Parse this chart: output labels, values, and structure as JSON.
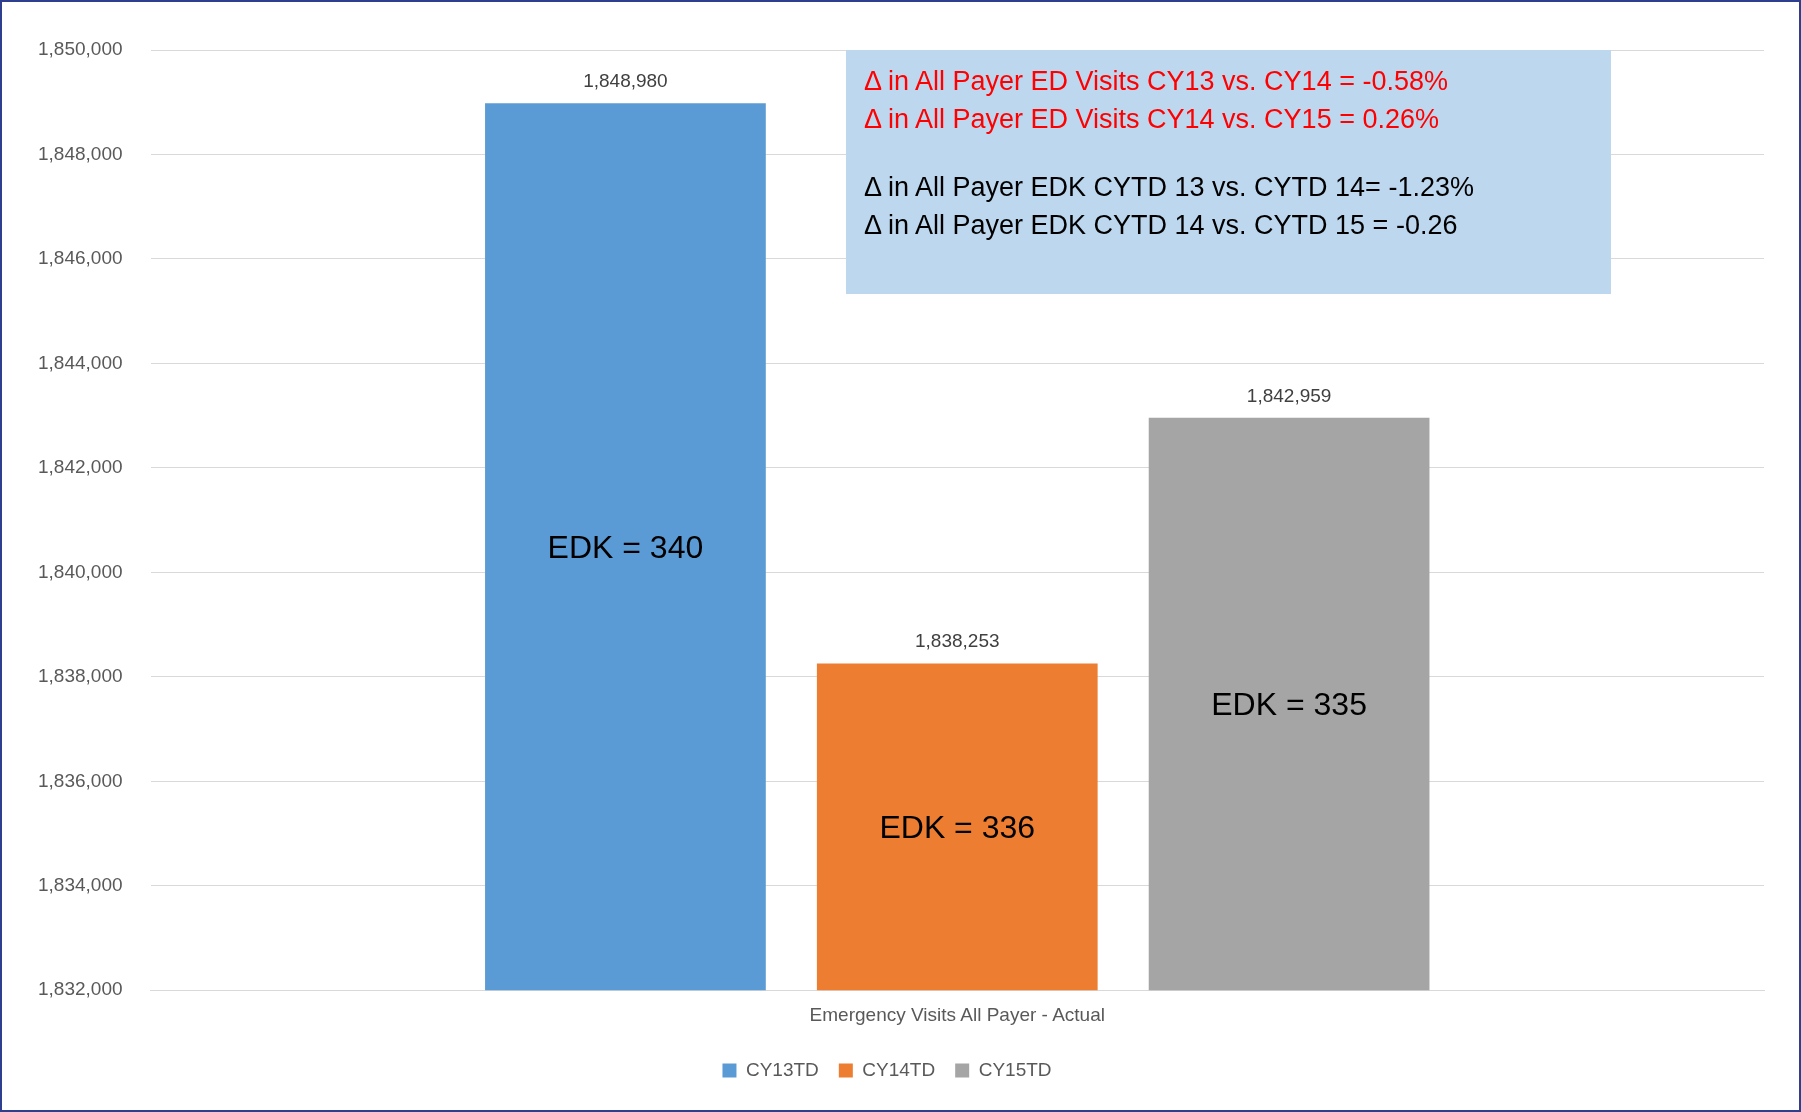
{
  "chart_data": {
    "type": "bar",
    "categories": [
      "Emergency Visits All Payer - Actual"
    ],
    "series": [
      {
        "name": "CY13TD",
        "color": "#5b9bd5",
        "values": [
          1848980
        ],
        "value_labels": [
          "1,848,980"
        ]
      },
      {
        "name": "CY14TD",
        "color": "#ed7d31",
        "values": [
          1838253
        ],
        "value_labels": [
          "1,838,253"
        ]
      },
      {
        "name": "CY15TD",
        "color": "#a5a5a5",
        "values": [
          1842959
        ],
        "value_labels": [
          "1,842,959"
        ]
      }
    ],
    "ylim": [
      1832000,
      1850000
    ],
    "yticks": [
      {
        "value": 1832000,
        "label": "1,832,000"
      },
      {
        "value": 1834000,
        "label": "1,834,000"
      },
      {
        "value": 1836000,
        "label": "1,836,000"
      },
      {
        "value": 1838000,
        "label": "1,838,000"
      },
      {
        "value": 1840000,
        "label": "1,840,000"
      },
      {
        "value": 1842000,
        "label": "1,842,000"
      },
      {
        "value": 1844000,
        "label": "1,844,000"
      },
      {
        "value": 1846000,
        "label": "1,846,000"
      },
      {
        "value": 1848000,
        "label": "1,848,000"
      },
      {
        "value": 1850000,
        "label": "1,850,000"
      }
    ],
    "grid": "y",
    "legend": "bottom",
    "annotations": [
      "EDK = 340",
      "EDK = 336",
      "EDK = 335",
      "Δ in All Payer ED Visits CY13 vs. CY14 = -0.58%",
      "Δ in All Payer ED Visits CY14 vs. CY15 = 0.26%",
      "Δ in All Payer EDK CYTD 13 vs. CYTD 14= -1.23%",
      "Δ in All Payer EDK CYTD 14 vs. CYTD 15 = -0.26"
    ]
  }
}
